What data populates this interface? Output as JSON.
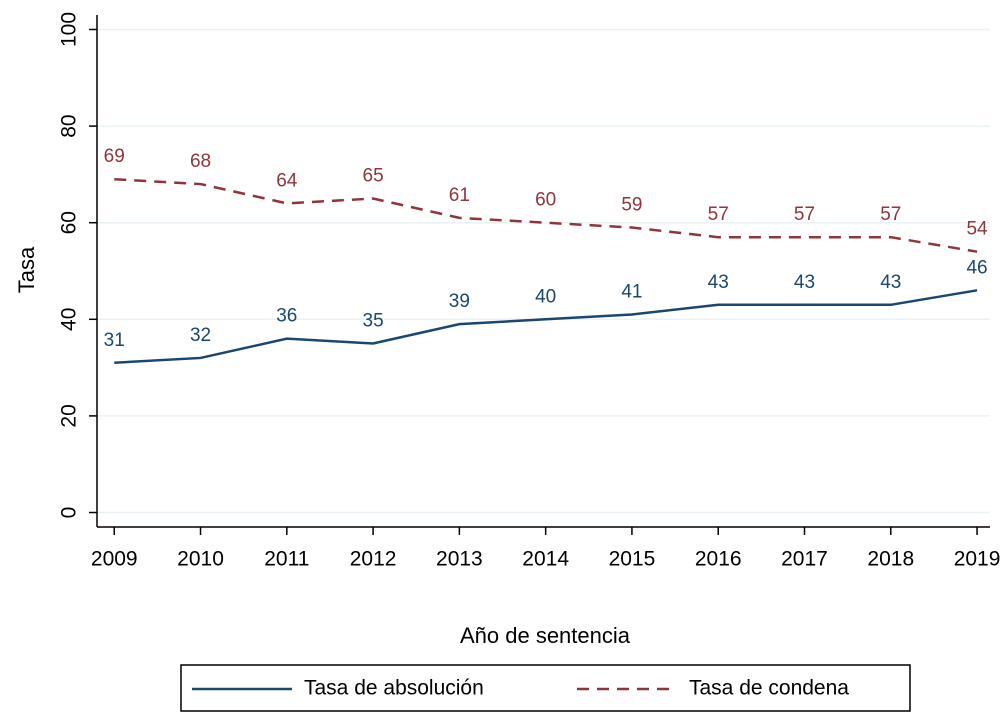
{
  "chart_data": {
    "type": "line",
    "x_label": "Año de sentencia",
    "y_label": "Tasa",
    "x": [
      2009,
      2010,
      2011,
      2012,
      2013,
      2014,
      2015,
      2016,
      2017,
      2018,
      2019
    ],
    "series": [
      {
        "name": "Tasa de absolución",
        "color": "#1a476f",
        "line_style": "solid",
        "values": [
          31,
          32,
          36,
          35,
          39,
          40,
          41,
          43,
          43,
          43,
          46
        ]
      },
      {
        "name": "Tasa de condena",
        "color": "#90353b",
        "line_style": "dashed",
        "values": [
          69,
          68,
          64,
          65,
          61,
          60,
          59,
          57,
          57,
          57,
          54
        ]
      }
    ],
    "xlim": [
      2008.8,
      2019.15
    ],
    "xticks": [
      2009,
      2010,
      2011,
      2012,
      2013,
      2014,
      2015,
      2016,
      2017,
      2018,
      2019
    ],
    "ylim": [
      -3,
      103
    ],
    "yticks": [
      0,
      20,
      40,
      60,
      80,
      100
    ],
    "grid": true,
    "data_labels": true,
    "legend": "bottom"
  }
}
